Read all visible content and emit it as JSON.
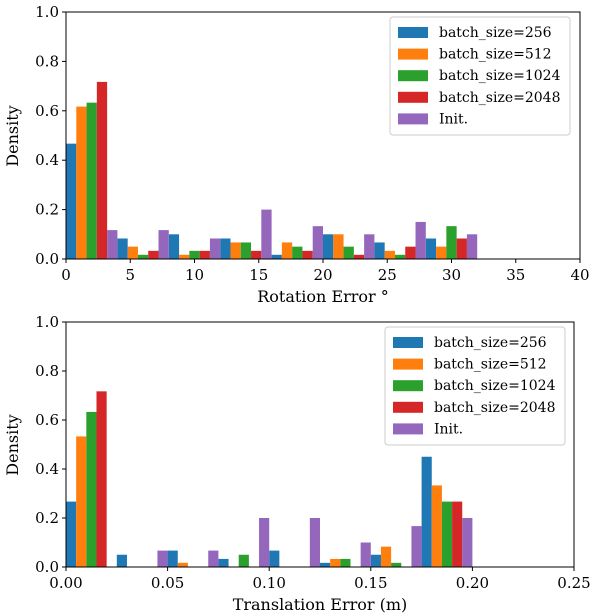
{
  "chart_data": [
    {
      "type": "bar",
      "xlabel": "Rotation Error °",
      "ylabel": "Density",
      "xlim": [
        0,
        40
      ],
      "ylim": [
        0,
        1.0
      ],
      "xticks": [
        "0",
        "5",
        "10",
        "15",
        "20",
        "25",
        "30",
        "35",
        "40"
      ],
      "yticks": [
        "0.0",
        "0.2",
        "0.4",
        "0.6",
        "0.8",
        "1.0"
      ],
      "grid": false,
      "legend_position": "top-right",
      "bin_edges": [
        0,
        4,
        8,
        12,
        16,
        20,
        24,
        28,
        32,
        36,
        40
      ],
      "series": [
        {
          "name": "batch_size=256",
          "color": "#1f77b4",
          "values": [
            0.467,
            0.083,
            0.1,
            0.083,
            0.017,
            0.1,
            0.067,
            0.083,
            0.0,
            0.0
          ]
        },
        {
          "name": "batch_size=512",
          "color": "#ff7f0e",
          "values": [
            0.617,
            0.05,
            0.017,
            0.067,
            0.067,
            0.1,
            0.033,
            0.05,
            0.0,
            0.0
          ]
        },
        {
          "name": "batch_size=1024",
          "color": "#2ca02c",
          "values": [
            0.633,
            0.017,
            0.033,
            0.067,
            0.05,
            0.05,
            0.017,
            0.133,
            0.0,
            0.0
          ]
        },
        {
          "name": "batch_size=2048",
          "color": "#d62728",
          "values": [
            0.717,
            0.033,
            0.033,
            0.033,
            0.033,
            0.017,
            0.05,
            0.083,
            0.0,
            0.0
          ]
        },
        {
          "name": "Init.",
          "color": "#9467bd",
          "values": [
            0.117,
            0.117,
            0.083,
            0.2,
            0.133,
            0.1,
            0.15,
            0.1,
            0.0,
            0.0
          ]
        }
      ]
    },
    {
      "type": "bar",
      "xlabel": "Translation Error (m)",
      "ylabel": "Density",
      "xlim": [
        0,
        0.25
      ],
      "ylim": [
        0,
        1.0
      ],
      "xticks": [
        "0.00",
        "0.05",
        "0.10",
        "0.15",
        "0.20",
        "0.25"
      ],
      "yticks": [
        "0.0",
        "0.2",
        "0.4",
        "0.6",
        "0.8",
        "1.0"
      ],
      "grid": false,
      "legend_position": "top-right",
      "bin_edges": [
        0,
        0.025,
        0.05,
        0.075,
        0.1,
        0.125,
        0.15,
        0.175,
        0.2,
        0.225,
        0.25
      ],
      "series": [
        {
          "name": "batch_size=256",
          "color": "#1f77b4",
          "values": [
            0.267,
            0.05,
            0.067,
            0.033,
            0.067,
            0.017,
            0.05,
            0.45,
            0.0,
            0.0
          ]
        },
        {
          "name": "batch_size=512",
          "color": "#ff7f0e",
          "values": [
            0.533,
            0.0,
            0.017,
            0.0,
            0.0,
            0.033,
            0.083,
            0.333,
            0.0,
            0.0
          ]
        },
        {
          "name": "batch_size=1024",
          "color": "#2ca02c",
          "values": [
            0.633,
            0.0,
            0.0,
            0.05,
            0.0,
            0.033,
            0.017,
            0.267,
            0.0,
            0.0
          ]
        },
        {
          "name": "batch_size=2048",
          "color": "#d62728",
          "values": [
            0.717,
            0.0,
            0.0,
            0.0,
            0.0,
            0.0,
            0.0,
            0.267,
            0.0,
            0.0
          ]
        },
        {
          "name": "Init.",
          "color": "#9467bd",
          "values": [
            0.0,
            0.067,
            0.067,
            0.2,
            0.2,
            0.1,
            0.167,
            0.2,
            0.0,
            0.0
          ]
        }
      ]
    }
  ]
}
